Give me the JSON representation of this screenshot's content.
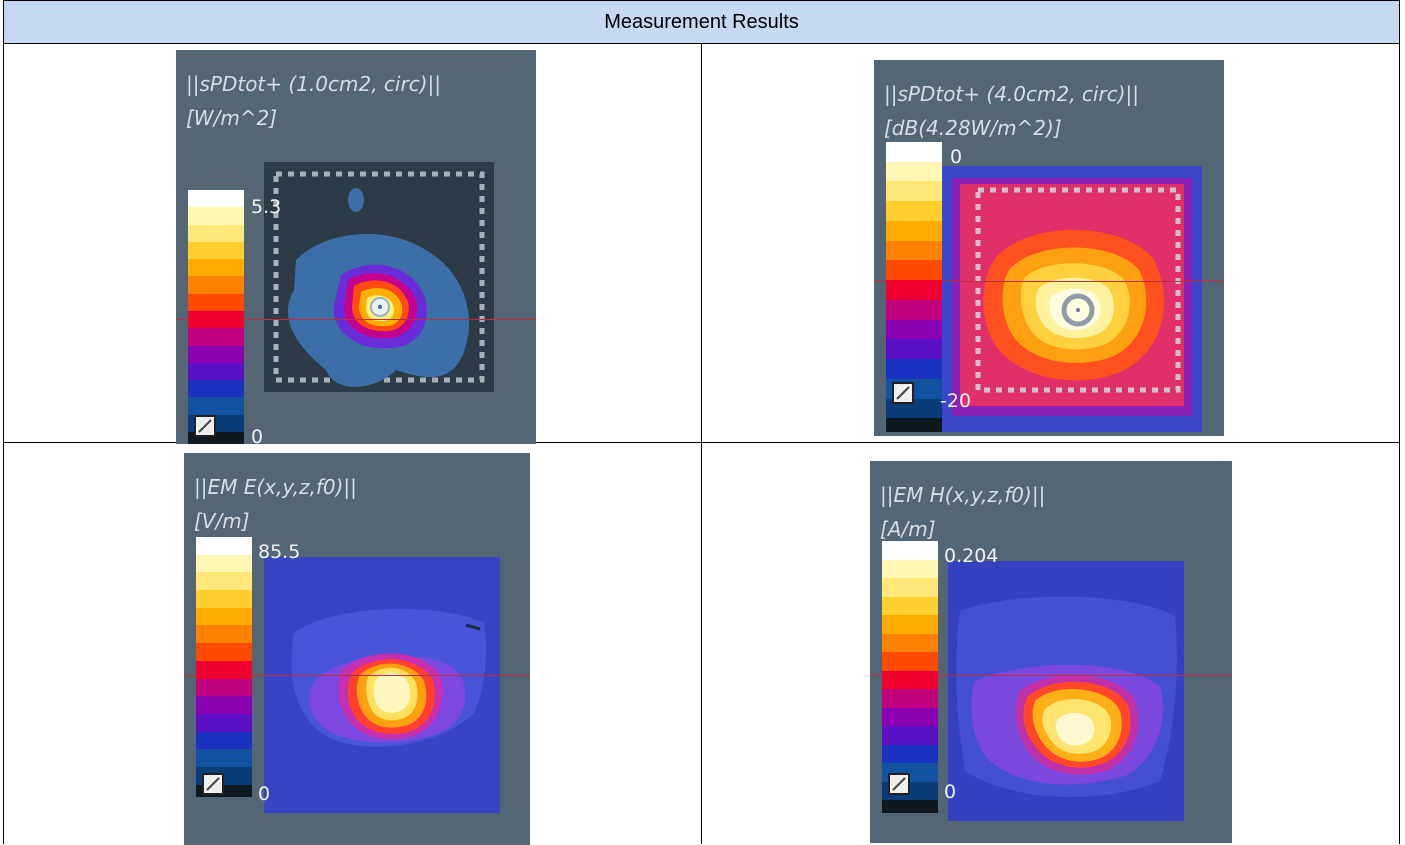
{
  "header": {
    "title": "Measurement Results"
  },
  "colormap": {
    "stops": [
      "#ffffff",
      "#fff8b4",
      "#ffe877",
      "#ffcf30",
      "#ffab00",
      "#ff8100",
      "#ff4b00",
      "#ee0030",
      "#c0007c",
      "#8b00b0",
      "#5a10c4",
      "#1a32c0",
      "#1250a0",
      "#0a3d78",
      "#101820"
    ]
  },
  "panels": [
    {
      "id": "spd-1cm",
      "title": "||sPDtot+ (1.0cm2, circ)||",
      "unit": "[W/m^2]",
      "max": "5.3",
      "min": "0"
    },
    {
      "id": "spd-4cm",
      "title": "||sPDtot+ (4.0cm2, circ)||",
      "unit": "[dB(4.28W/m^2)]",
      "max": "0",
      "min": "-20"
    },
    {
      "id": "em-e",
      "title": "||EM E(x,y,z,f0)||",
      "unit": "[V/m]",
      "max": "85.5",
      "min": "0"
    },
    {
      "id": "em-h",
      "title": "||EM H(x,y,z,f0)||",
      "unit": "[A/m]",
      "max": "0.204",
      "min": "0"
    }
  ]
}
